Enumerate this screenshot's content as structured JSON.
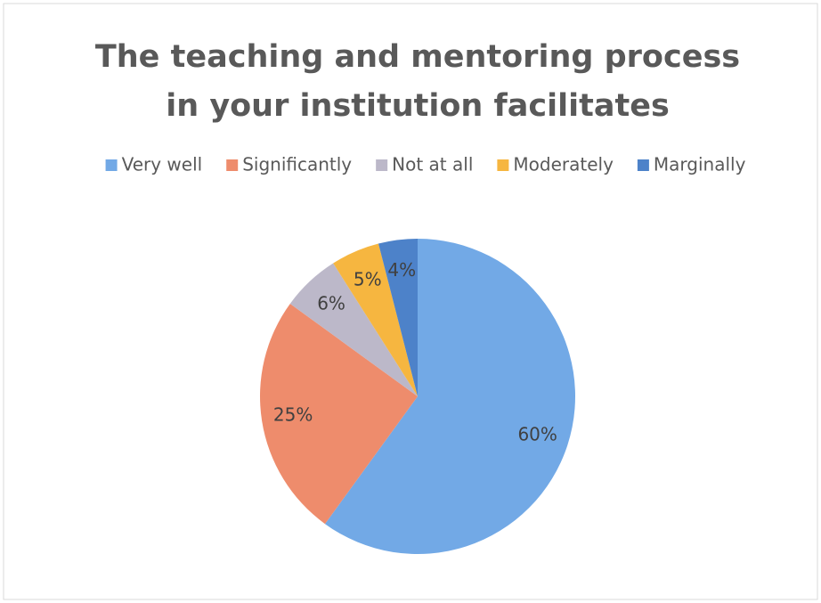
{
  "chart_data": {
    "type": "pie",
    "title": [
      "The teaching and mentoring process",
      "in your institution facilitates"
    ],
    "categories": [
      "Very well",
      "Significantly",
      "Not at all",
      "Moderately",
      "Marginally"
    ],
    "values": [
      60,
      25,
      6,
      5,
      4
    ],
    "value_labels": [
      "60%",
      "25%",
      "6%",
      "5%",
      "4%"
    ],
    "colors": [
      "#72a9e6",
      "#ee8c6c",
      "#bcb8c9",
      "#f6b640",
      "#4d82c9"
    ],
    "legend": "top"
  }
}
